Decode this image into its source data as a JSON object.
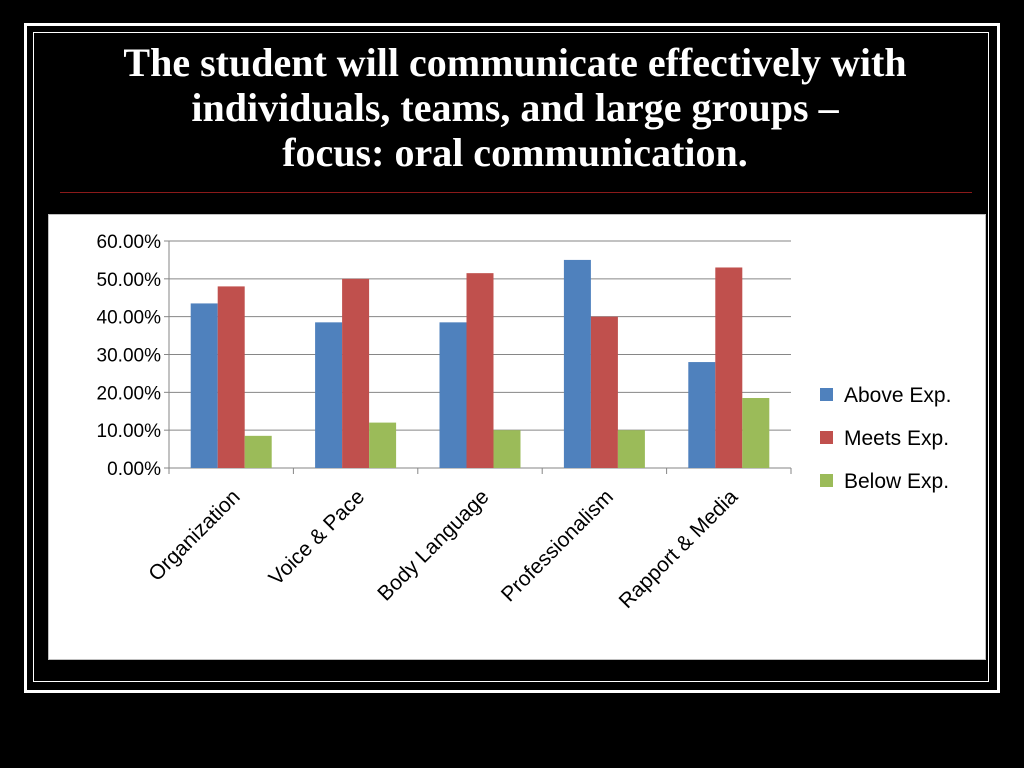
{
  "slide": {
    "title_lines": [
      "The student will communicate effectively with",
      "individuals, teams, and large groups –",
      "focus: oral communication."
    ]
  },
  "chart_data": {
    "type": "bar",
    "categories": [
      "Organization",
      "Voice & Pace",
      "Body Language",
      "Professionalism",
      "Rapport & Media"
    ],
    "series": [
      {
        "name": "Above Exp.",
        "color": "#4f81bd",
        "values": [
          43.5,
          38.5,
          38.5,
          55.0,
          28.0
        ]
      },
      {
        "name": "Meets Exp.",
        "color": "#c0504d",
        "values": [
          48.0,
          50.0,
          51.5,
          40.0,
          53.0
        ]
      },
      {
        "name": "Below Exp.",
        "color": "#9bbb59",
        "values": [
          8.5,
          12.0,
          10.0,
          10.0,
          18.5
        ]
      }
    ],
    "ylim": [
      0,
      60
    ],
    "ytick_labels": [
      "0.00%",
      "10.00%",
      "20.00%",
      "30.00%",
      "40.00%",
      "50.00%",
      "60.00%"
    ],
    "grid": true,
    "legend_position": "right",
    "title": "",
    "xlabel": "",
    "ylabel": ""
  }
}
